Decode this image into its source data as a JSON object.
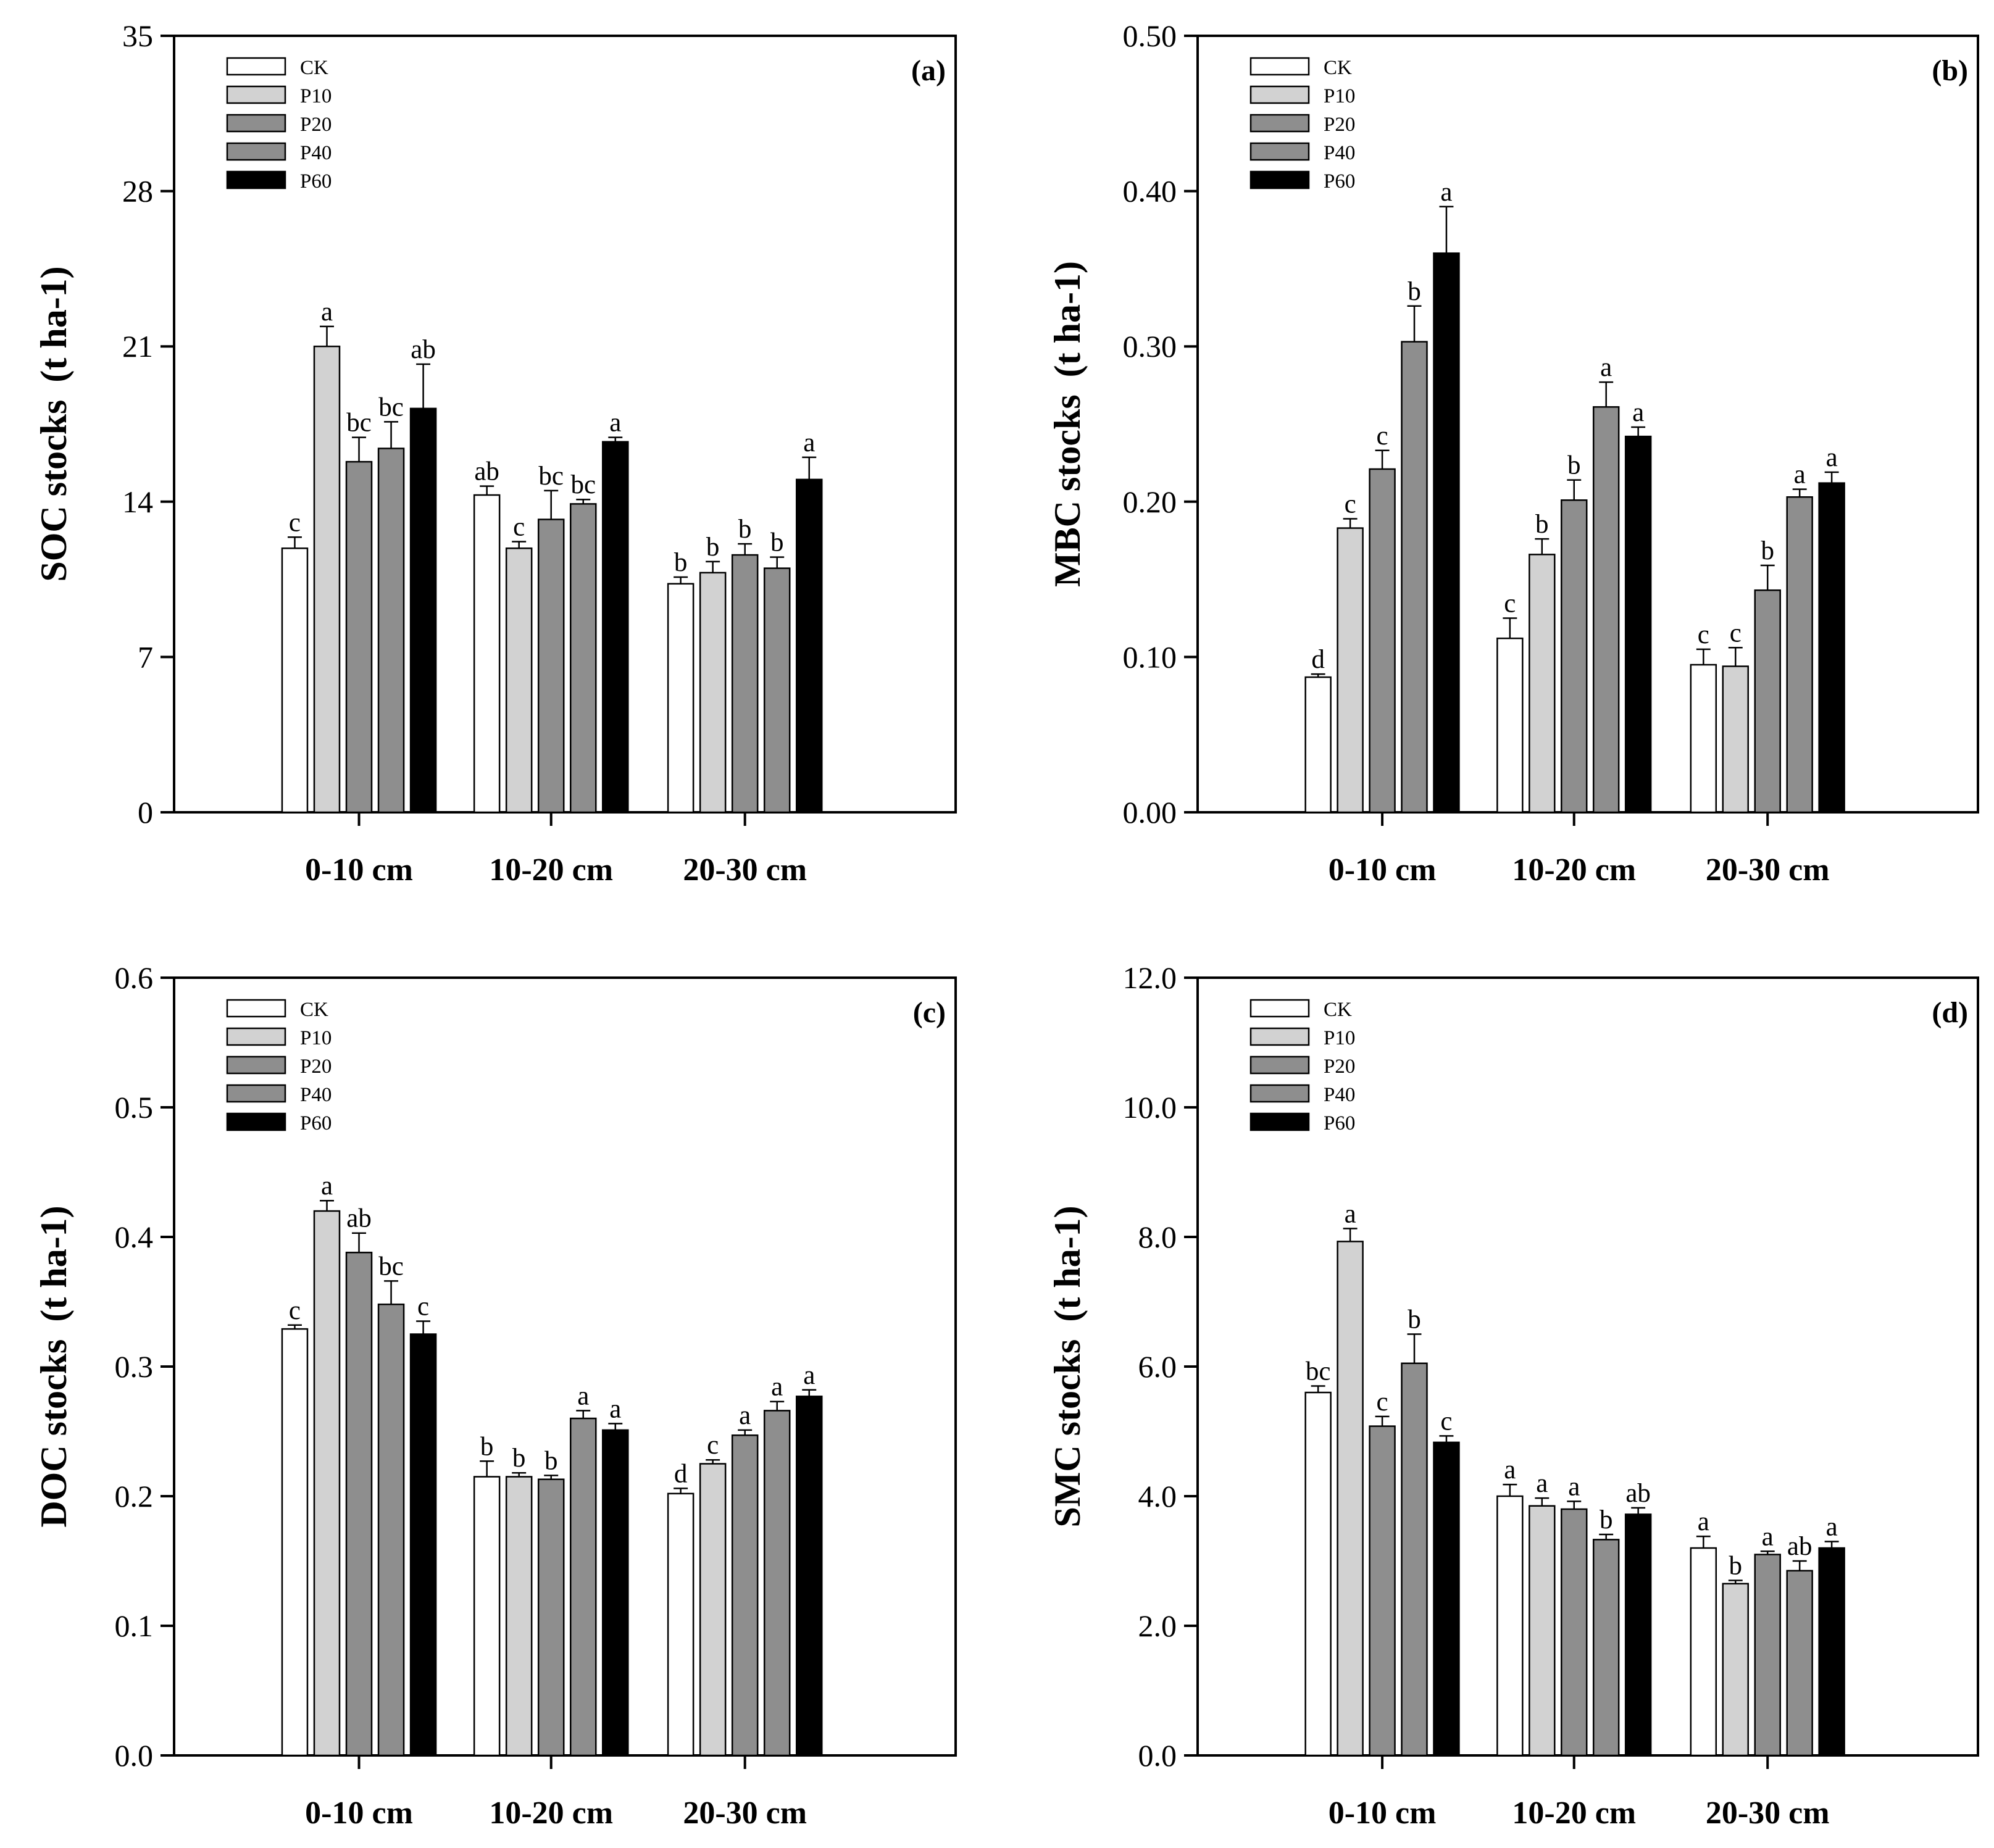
{
  "colors": {
    "CK": "#ffffff",
    "P10": "#d2d2d2",
    "P20": "#8e8e8e",
    "P40": "#8e8e8e",
    "P60": "#000000"
  },
  "chart_data": [
    {
      "type": "bar",
      "panel": "(a)",
      "title": "",
      "ylabel": "SOC stocks",
      "yunit": "(t ha-1)",
      "xlabel": "",
      "categories": [
        "0-10 cm",
        "10-20 cm",
        "20-30 cm"
      ],
      "ylim": [
        0,
        35
      ],
      "yticks": [
        "0",
        "7",
        "14",
        "21",
        "28",
        "35"
      ],
      "legend": [
        "CK",
        "P10",
        "P20",
        "P40",
        "P60"
      ],
      "legend_position": "top-left",
      "series": [
        {
          "name": "CK",
          "values": [
            11.9,
            14.3,
            10.3
          ],
          "errors": [
            0.5,
            0.4,
            0.3
          ],
          "letters": [
            "c",
            "ab",
            "b"
          ]
        },
        {
          "name": "P10",
          "values": [
            21.0,
            11.9,
            10.8
          ],
          "errors": [
            0.9,
            0.3,
            0.5
          ],
          "letters": [
            "a",
            "c",
            "b"
          ]
        },
        {
          "name": "P20",
          "values": [
            15.8,
            13.2,
            11.6
          ],
          "errors": [
            1.1,
            1.3,
            0.5
          ],
          "letters": [
            "bc",
            "bc",
            "b"
          ]
        },
        {
          "name": "P40",
          "values": [
            16.4,
            13.9,
            11.0
          ],
          "errors": [
            1.2,
            0.2,
            0.5
          ],
          "letters": [
            "bc",
            "bc",
            "b"
          ]
        },
        {
          "name": "P60",
          "values": [
            18.2,
            16.7,
            15.0
          ],
          "errors": [
            2.0,
            0.2,
            1.0
          ],
          "letters": [
            "ab",
            "a",
            "a"
          ]
        }
      ]
    },
    {
      "type": "bar",
      "panel": "(b)",
      "title": "",
      "ylabel": "MBC stocks",
      "yunit": "(t ha-1)",
      "xlabel": "",
      "categories": [
        "0-10 cm",
        "10-20 cm",
        "20-30 cm"
      ],
      "ylim": [
        0,
        0.5
      ],
      "yticks": [
        "0.00",
        "0.10",
        "0.20",
        "0.30",
        "0.40",
        "0.50"
      ],
      "legend": [
        "CK",
        "P10",
        "P20",
        "P40",
        "P60"
      ],
      "legend_position": "top-left",
      "series": [
        {
          "name": "CK",
          "values": [
            0.087,
            0.112,
            0.095
          ],
          "errors": [
            0.002,
            0.013,
            0.01
          ],
          "letters": [
            "d",
            "c",
            "c"
          ]
        },
        {
          "name": "P10",
          "values": [
            0.183,
            0.166,
            0.094
          ],
          "errors": [
            0.006,
            0.01,
            0.012
          ],
          "letters": [
            "c",
            "b",
            "c"
          ]
        },
        {
          "name": "P20",
          "values": [
            0.221,
            0.201,
            0.143
          ],
          "errors": [
            0.012,
            0.013,
            0.016
          ],
          "letters": [
            "c",
            "b",
            "b"
          ]
        },
        {
          "name": "P40",
          "values": [
            0.303,
            0.261,
            0.203
          ],
          "errors": [
            0.023,
            0.016,
            0.005
          ],
          "letters": [
            "b",
            "a",
            "a"
          ]
        },
        {
          "name": "P60",
          "values": [
            0.36,
            0.242,
            0.212
          ],
          "errors": [
            0.03,
            0.006,
            0.007
          ],
          "letters": [
            "a",
            "a",
            "a"
          ]
        }
      ]
    },
    {
      "type": "bar",
      "panel": "(c)",
      "title": "",
      "ylabel": "DOC stocks",
      "yunit": "(t ha-1)",
      "xlabel": "",
      "categories": [
        "0-10 cm",
        "10-20 cm",
        "20-30 cm"
      ],
      "ylim": [
        0,
        0.6
      ],
      "yticks": [
        "0.0",
        "0.1",
        "0.2",
        "0.3",
        "0.4",
        "0.5",
        "0.6"
      ],
      "legend": [
        "CK",
        "P10",
        "P20",
        "P40",
        "P60"
      ],
      "legend_position": "top-left",
      "series": [
        {
          "name": "CK",
          "values": [
            0.329,
            0.215,
            0.202
          ],
          "errors": [
            0.003,
            0.012,
            0.004
          ],
          "letters": [
            "c",
            "b",
            "d"
          ]
        },
        {
          "name": "P10",
          "values": [
            0.42,
            0.215,
            0.225
          ],
          "errors": [
            0.008,
            0.003,
            0.003
          ],
          "letters": [
            "a",
            "b",
            "c"
          ]
        },
        {
          "name": "P20",
          "values": [
            0.388,
            0.213,
            0.247
          ],
          "errors": [
            0.015,
            0.003,
            0.004
          ],
          "letters": [
            "ab",
            "b",
            "a"
          ]
        },
        {
          "name": "P40",
          "values": [
            0.348,
            0.26,
            0.266
          ],
          "errors": [
            0.018,
            0.006,
            0.007
          ],
          "letters": [
            "bc",
            "a",
            "a"
          ]
        },
        {
          "name": "P60",
          "values": [
            0.325,
            0.251,
            0.277
          ],
          "errors": [
            0.01,
            0.005,
            0.005
          ],
          "letters": [
            "c",
            "a",
            "a"
          ]
        }
      ]
    },
    {
      "type": "bar",
      "panel": "(d)",
      "title": "",
      "ylabel": "SMC  stocks",
      "yunit": "(t ha-1)",
      "xlabel": "",
      "categories": [
        "0-10 cm",
        "10-20 cm",
        "20-30 cm"
      ],
      "ylim": [
        0,
        12
      ],
      "yticks": [
        "0.0",
        "2.0",
        "4.0",
        "6.0",
        "8.0",
        "10.0",
        "12.0"
      ],
      "legend": [
        "CK",
        "P10",
        "P20",
        "P40",
        "P60"
      ],
      "legend_position": "top-left",
      "series": [
        {
          "name": "CK",
          "values": [
            5.6,
            4.0,
            3.2
          ],
          "errors": [
            0.1,
            0.18,
            0.18
          ],
          "letters": [
            "bc",
            "a",
            "a"
          ]
        },
        {
          "name": "P10",
          "values": [
            7.93,
            3.85,
            2.65
          ],
          "errors": [
            0.2,
            0.12,
            0.05
          ],
          "letters": [
            "a",
            "a",
            "b"
          ]
        },
        {
          "name": "P20",
          "values": [
            5.08,
            3.8,
            3.1
          ],
          "errors": [
            0.15,
            0.12,
            0.05
          ],
          "letters": [
            "c",
            "a",
            "a"
          ]
        },
        {
          "name": "P40",
          "values": [
            6.05,
            3.33,
            2.85
          ],
          "errors": [
            0.45,
            0.08,
            0.15
          ],
          "letters": [
            "b",
            "b",
            "ab"
          ]
        },
        {
          "name": "P60",
          "values": [
            4.83,
            3.72,
            3.2
          ],
          "errors": [
            0.1,
            0.1,
            0.1
          ],
          "letters": [
            "c",
            "ab",
            "a"
          ]
        }
      ]
    }
  ]
}
